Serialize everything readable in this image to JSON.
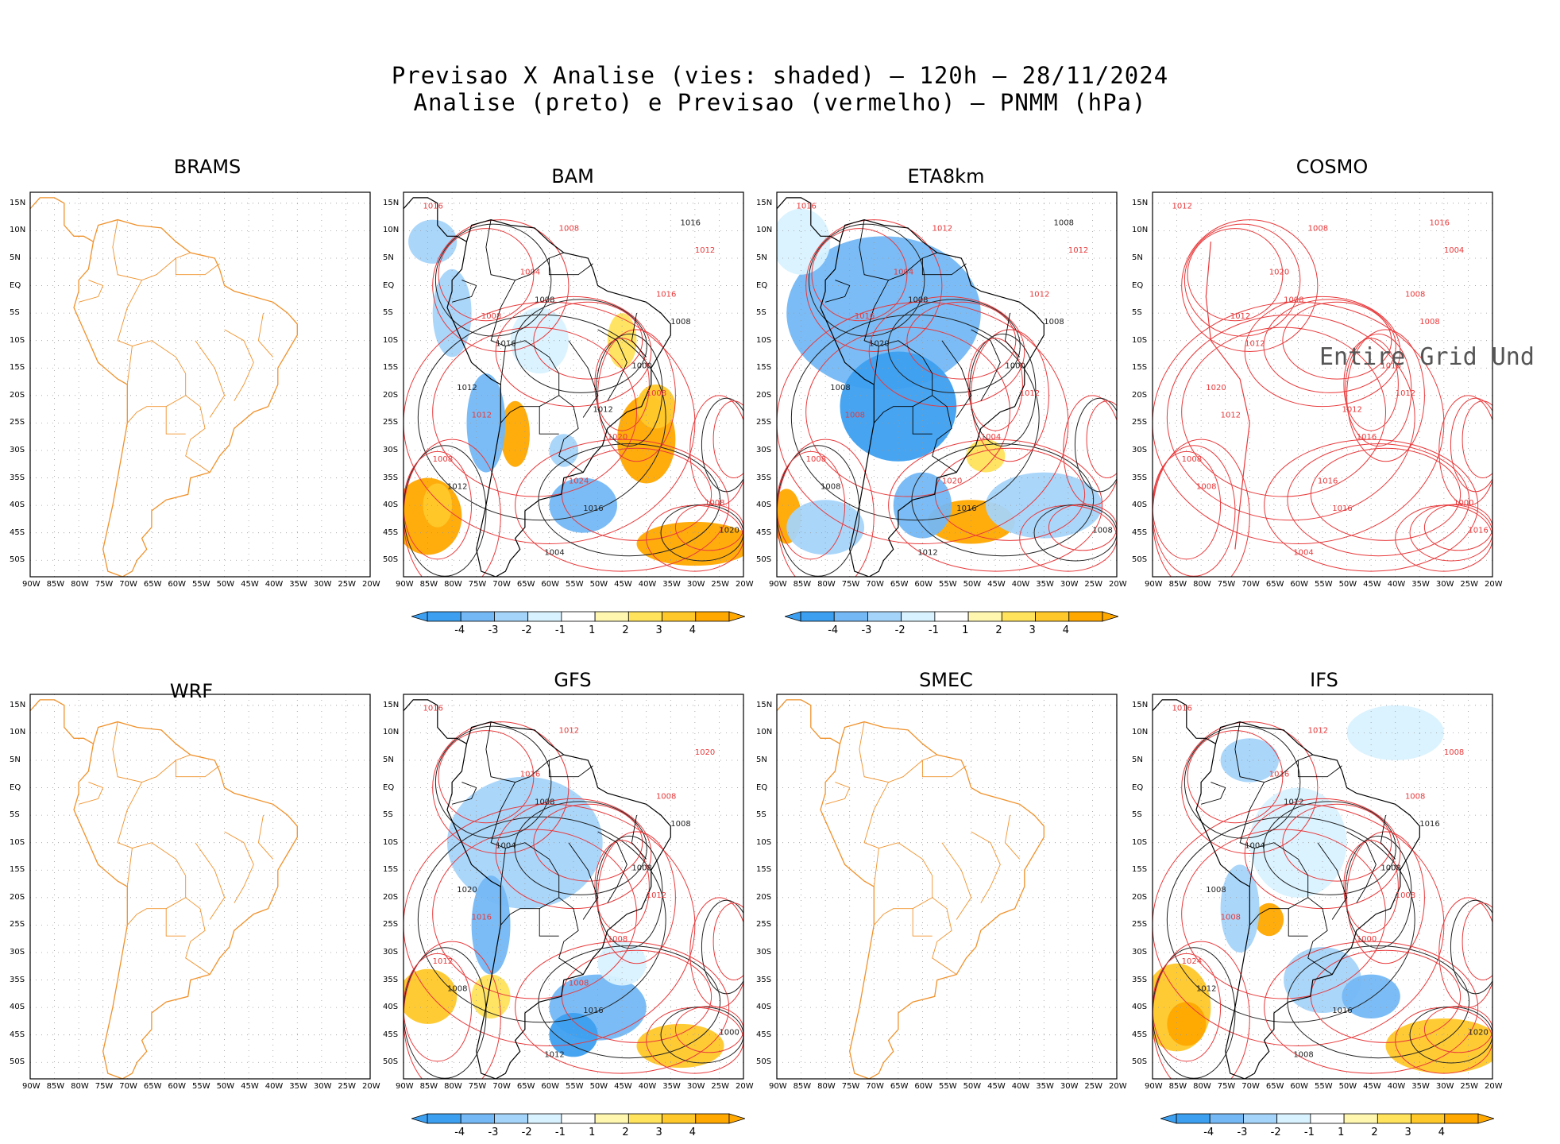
{
  "header": {
    "title_line1": "Previsao X Analise (vies: shaded) – 120h – 28/11/2024",
    "title_line2": "Analise (preto) e Previsao (vermelho) – PNMM (hPa)"
  },
  "axes": {
    "lat_labels": [
      "15N",
      "10N",
      "5N",
      "EQ",
      "5S",
      "10S",
      "15S",
      "20S",
      "25S",
      "30S",
      "35S",
      "40S",
      "45S",
      "50S"
    ],
    "lon_labels": [
      "90W",
      "85W",
      "80W",
      "75W",
      "70W",
      "65W",
      "60W",
      "55W",
      "50W",
      "45W",
      "40W",
      "35W",
      "30W",
      "25W",
      "20W"
    ]
  },
  "colors": {
    "coast_undefined": "#f0922c",
    "coast_defined": "#000000",
    "forecast_contour": "#e8393b",
    "analysis_contour": "#222222",
    "neg4": "#3d9ff0",
    "neg3": "#74b8f5",
    "neg2": "#a5d4fa",
    "neg1": "#d9f2ff",
    "pos1": "#fff6b0",
    "pos2": "#ffe35c",
    "pos3": "#ffc82a",
    "pos4": "#ffa800"
  },
  "colorbar": {
    "labels": [
      "-4",
      "-3",
      "-2",
      "-1",
      "1",
      "2",
      "3",
      "4"
    ]
  },
  "panels": [
    {
      "name": "BRAMS",
      "has_data": false,
      "has_colorbar": false,
      "contours": []
    },
    {
      "name": "BAM",
      "has_data": true,
      "has_colorbar": true,
      "contours": [
        "1016",
        "1008",
        "1008",
        "1012",
        "1008",
        "1008",
        "1012",
        "1016",
        "1012",
        "1016",
        "1020",
        "1020",
        "1004",
        "1000",
        "1008",
        "1004",
        "1016",
        "1012",
        "1024",
        "1016",
        "1008",
        "1012",
        "1008"
      ]
    },
    {
      "name": "ETA8km",
      "has_data": true,
      "has_colorbar": true,
      "contours": [
        "1016",
        "1008",
        "1012",
        "1008",
        "1012",
        "1008",
        "1008",
        "1016",
        "1012",
        "1020",
        "1004",
        "1008",
        "1004",
        "1000",
        "1008",
        "1012",
        "1012",
        "1008",
        "1020",
        "1008",
        "1016"
      ]
    },
    {
      "name": "COSMO",
      "has_data": false,
      "has_colorbar": false,
      "overlay_text": "Entire Grid Und",
      "contours": [
        "1012",
        "1008",
        "1012",
        "1008",
        "1008",
        "1008",
        "1012",
        "1016",
        "1004",
        "1012",
        "1016",
        "1016",
        "1020",
        "1016",
        "1008",
        "1004",
        "1008",
        "1020",
        "1016",
        "1016",
        "1012",
        "1012",
        "1000"
      ]
    },
    {
      "name": "WRF",
      "has_data": false,
      "has_colorbar": false,
      "contours": []
    },
    {
      "name": "GFS",
      "has_data": true,
      "has_colorbar": true,
      "contours": [
        "1016",
        "1008",
        "1012",
        "1008",
        "1012",
        "1008",
        "1016",
        "1016",
        "1020",
        "1004",
        "1008",
        "1000",
        "1016",
        "1008",
        "1012",
        "1012",
        "1008",
        "1020",
        "1008"
      ]
    },
    {
      "name": "SMEC",
      "has_data": false,
      "has_colorbar": false,
      "contours": []
    },
    {
      "name": "IFS",
      "has_data": true,
      "has_colorbar": true,
      "contours": [
        "1016",
        "1012",
        "1008",
        "1012",
        "1012",
        "1016",
        "1008",
        "1016",
        "1008",
        "1004",
        "1000",
        "1020",
        "1016",
        "1008",
        "1024",
        "1008",
        "1008",
        "1008"
      ]
    }
  ]
}
